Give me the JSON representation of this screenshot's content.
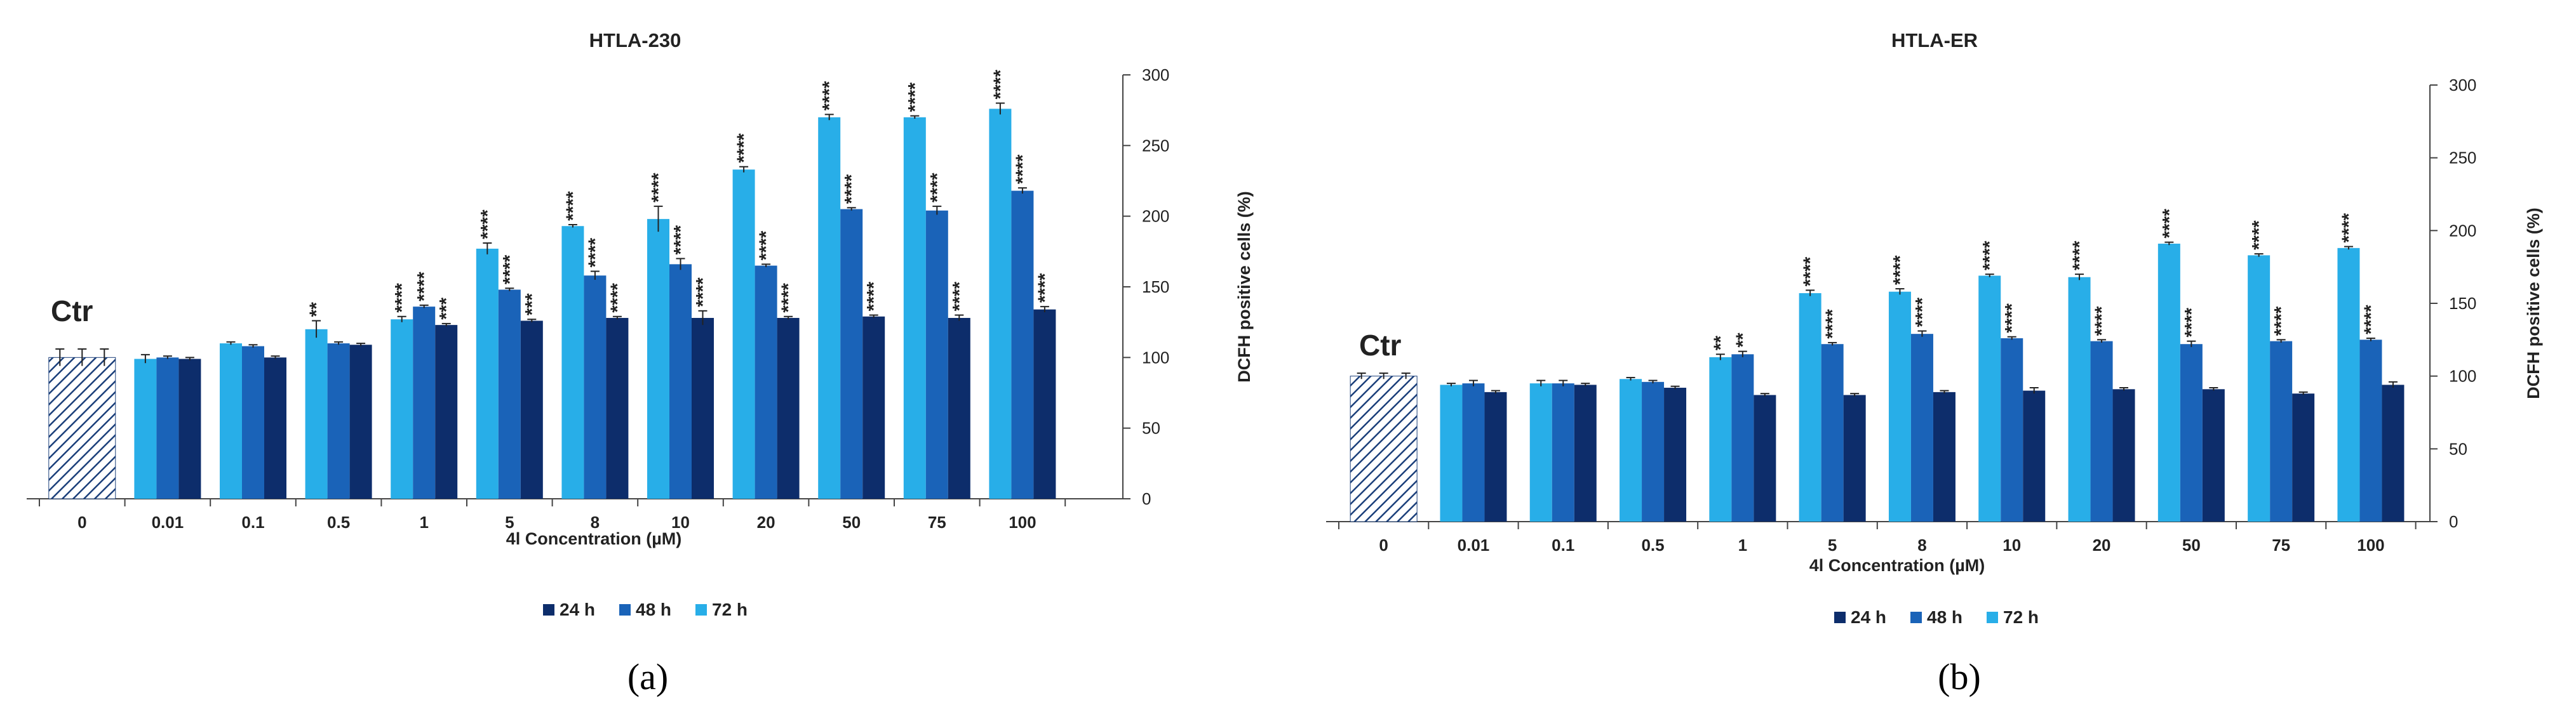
{
  "colors": {
    "h24": "#0d2d6b",
    "h48": "#1a63b8",
    "h72": "#28aee8",
    "control_stroke": "#1b3f7a",
    "error": "#222222"
  },
  "legend": [
    "24 h",
    "48 h",
    "72 h"
  ],
  "chart_data": [
    {
      "type": "bar",
      "panel_label": "a",
      "title": "HTLA-230",
      "xlabel": "4l Concentration (µM)",
      "ylabel": "DCFH positive cells (%)",
      "ylim": [
        0,
        300
      ],
      "yticks": [
        "0",
        "50",
        "100",
        "150",
        "200",
        "250",
        "300"
      ],
      "control_label": "Ctr",
      "categories": [
        "0",
        "0.01",
        "0.1",
        "0.5",
        "1",
        "5",
        "8",
        "10",
        "20",
        "50",
        "75",
        "100"
      ],
      "series": [
        {
          "name": "72 h",
          "values": [
            100,
            99,
            110,
            120,
            127,
            177,
            193,
            198,
            233,
            270,
            270,
            276
          ],
          "errors": [
            6,
            3,
            1,
            6,
            2,
            4,
            1,
            9,
            2,
            2,
            1,
            4
          ],
          "stars": [
            "",
            "",
            "",
            "**",
            "****",
            "****",
            "****",
            "****",
            "****",
            "****",
            "****",
            "****"
          ]
        },
        {
          "name": "48 h",
          "values": [
            100,
            100,
            108,
            110,
            136,
            148,
            158,
            166,
            165,
            205,
            204,
            218
          ],
          "errors": [
            6,
            1,
            1,
            1,
            1,
            1,
            3,
            4,
            1,
            1,
            3,
            2
          ],
          "stars": [
            "",
            "",
            "",
            "",
            "****",
            "****",
            "****",
            "****",
            "****",
            "****",
            "****",
            "****"
          ]
        },
        {
          "name": "24 h",
          "values": [
            100,
            99,
            100,
            109,
            123,
            126,
            128,
            128,
            128,
            129,
            128,
            134
          ],
          "errors": [
            6,
            1,
            1,
            1,
            1,
            1,
            1,
            5,
            1,
            1,
            2,
            2
          ],
          "stars": [
            "",
            "",
            "",
            "",
            "***",
            "***",
            "****",
            "****",
            "****",
            "****",
            "****",
            "****"
          ]
        }
      ]
    },
    {
      "type": "bar",
      "panel_label": "b",
      "title": "HTLA-ER",
      "xlabel": "4l Concentration (µM)",
      "ylabel": "DCFH positive cells (%)",
      "ylim": [
        0,
        300
      ],
      "yticks": [
        "0",
        "50",
        "100",
        "150",
        "200",
        "250",
        "300"
      ],
      "control_label": "Ctr",
      "categories": [
        "0",
        "0.01",
        "0.1",
        "0.5",
        "1",
        "5",
        "8",
        "10",
        "20",
        "50",
        "75",
        "100"
      ],
      "series": [
        {
          "name": "72 h",
          "values": [
            100,
            94,
            95,
            98,
            113,
            157,
            158,
            169,
            168,
            191,
            183,
            188
          ],
          "errors": [
            2,
            1,
            2,
            1,
            2,
            2,
            2,
            1,
            2,
            1,
            1,
            1
          ],
          "stars": [
            "",
            "",
            "",
            "",
            "**",
            "****",
            "****",
            "****",
            "****",
            "****",
            "****",
            "****"
          ]
        },
        {
          "name": "48 h",
          "values": [
            100,
            95,
            95,
            96,
            115,
            122,
            129,
            126,
            124,
            122,
            124,
            125
          ],
          "errors": [
            2,
            2,
            2,
            1,
            2,
            1,
            2,
            1,
            1,
            2,
            1,
            1
          ],
          "stars": [
            "",
            "",
            "",
            "",
            "**",
            "****",
            "****",
            "****",
            "****",
            "****",
            "****",
            "****"
          ]
        },
        {
          "name": "24 h",
          "values": [
            100,
            89,
            94,
            92,
            87,
            87,
            89,
            90,
            91,
            91,
            88,
            94
          ],
          "errors": [
            2,
            1,
            1,
            1,
            1,
            1,
            1,
            2,
            1,
            1,
            1,
            2
          ],
          "stars": [
            "",
            "",
            "",
            "",
            "",
            "",
            "",
            "",
            "",
            "",
            "",
            ""
          ]
        }
      ]
    }
  ]
}
